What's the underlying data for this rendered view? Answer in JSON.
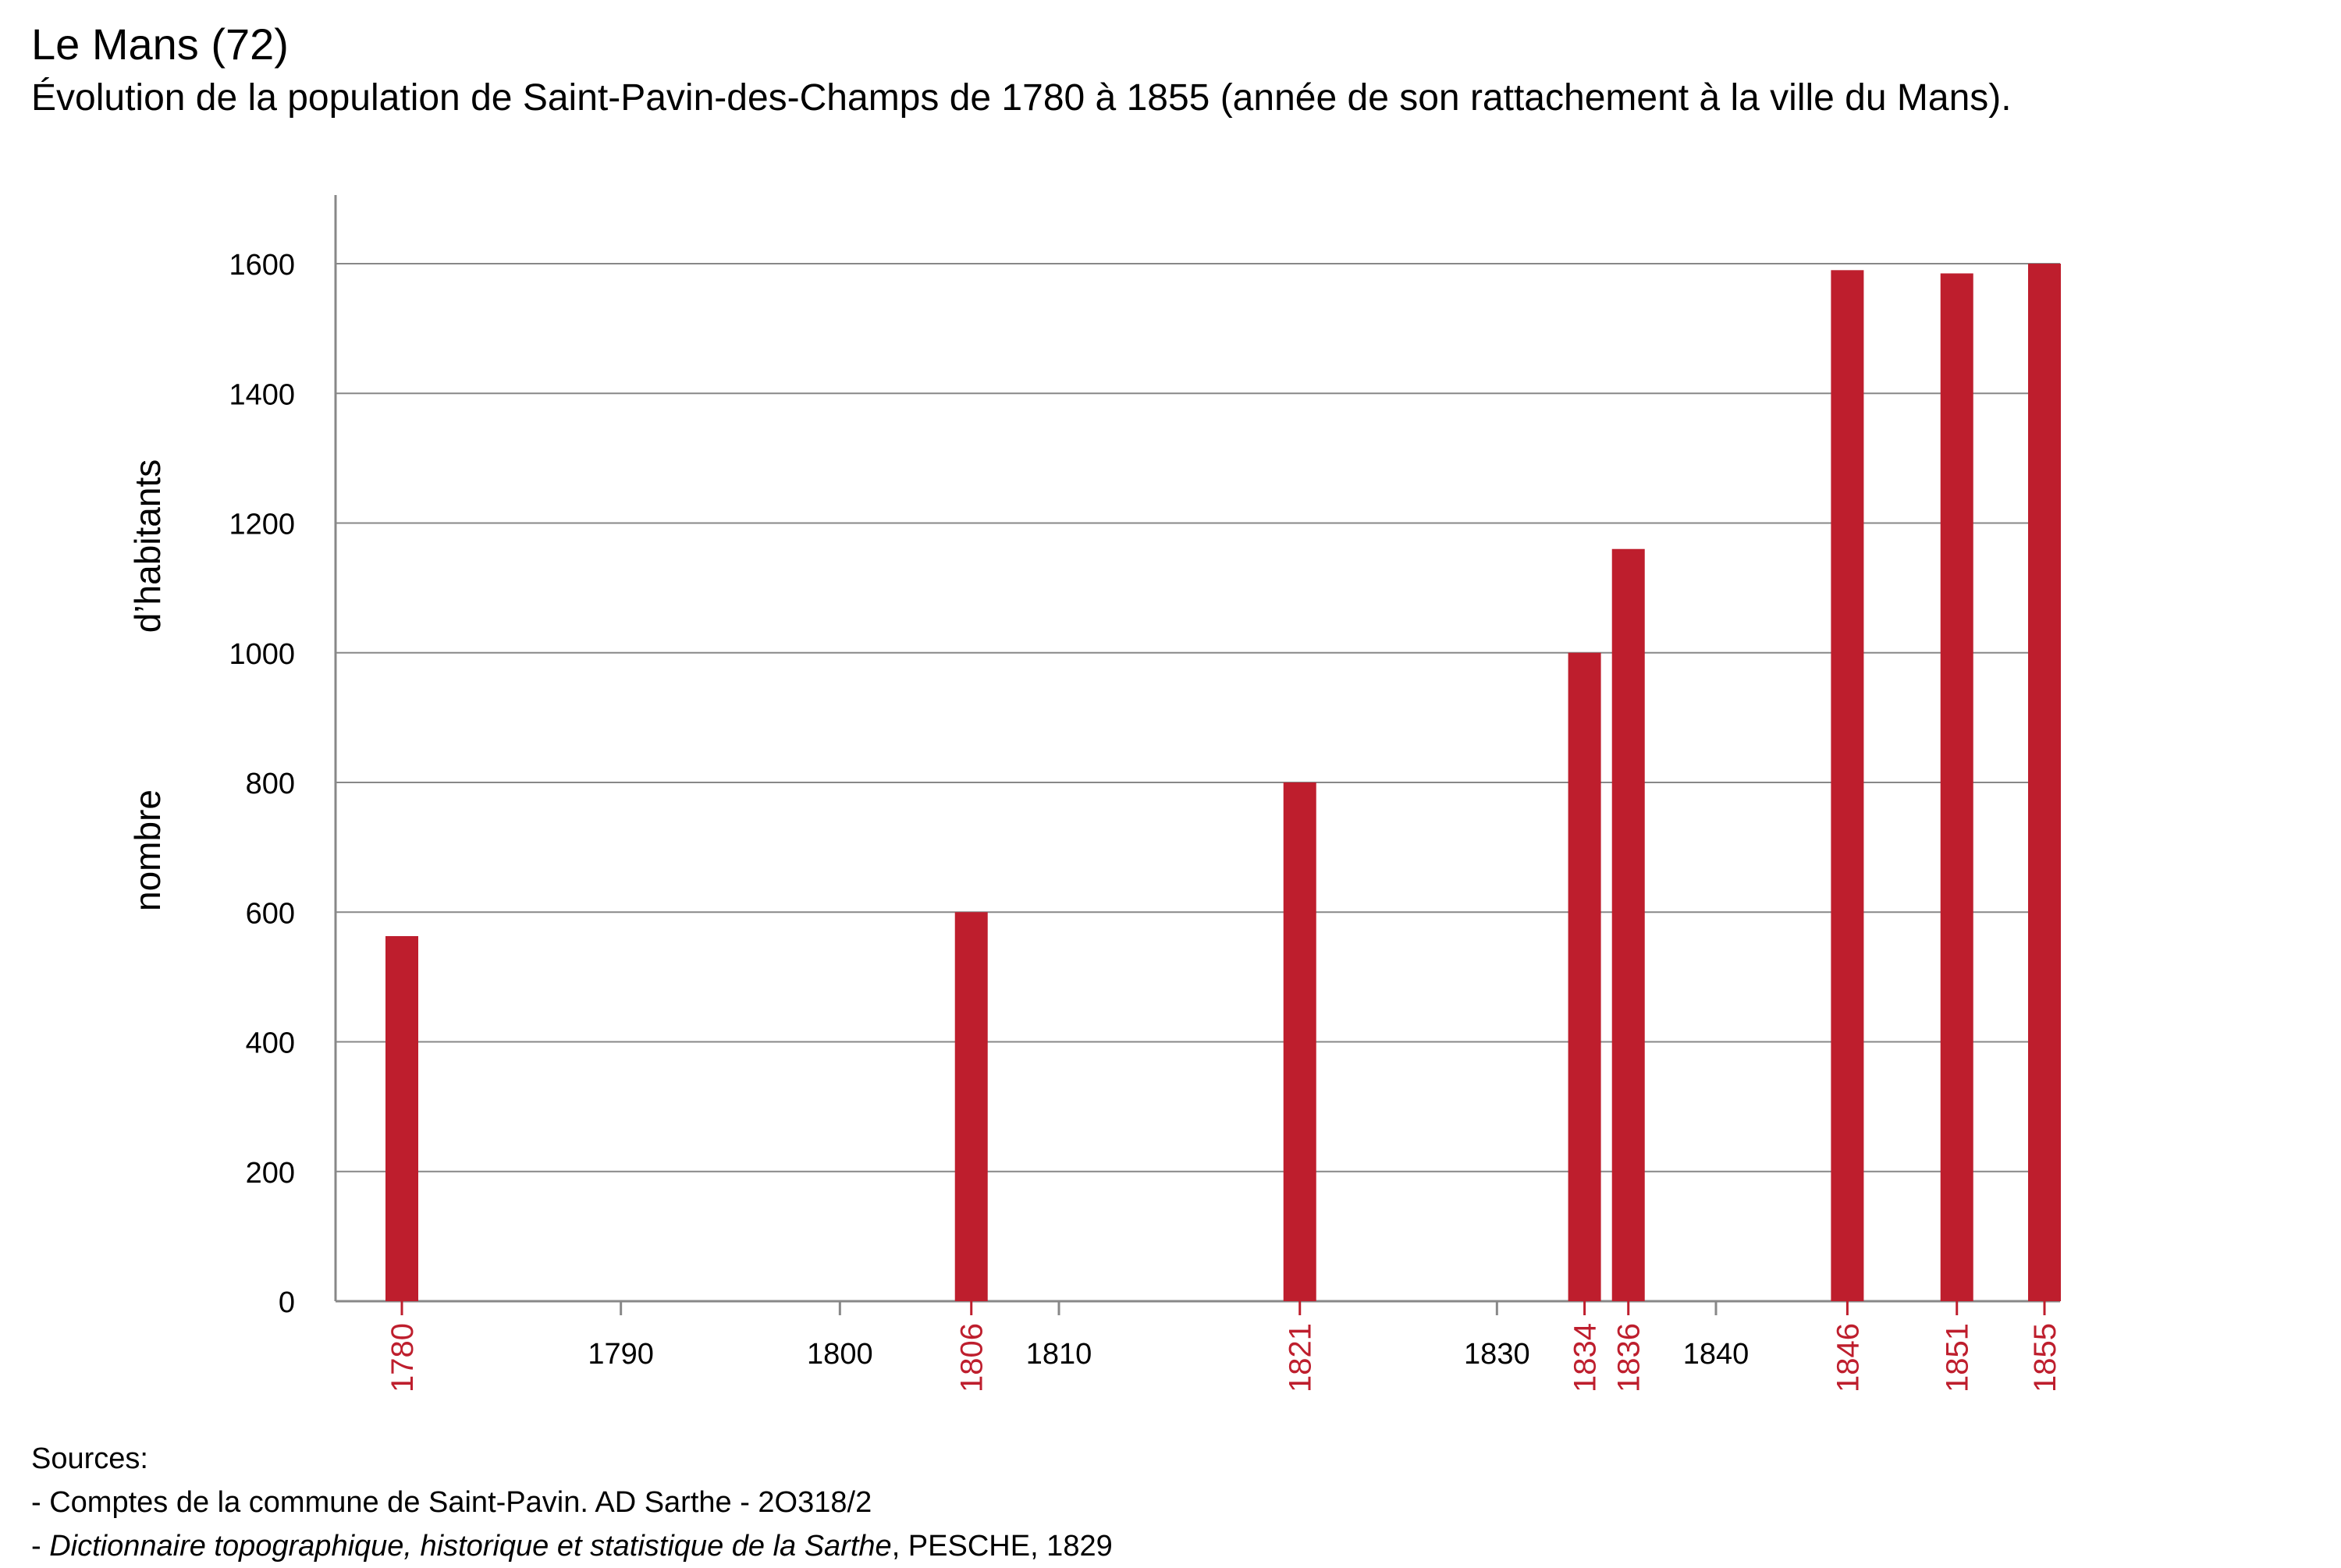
{
  "header": {
    "title": "Le Mans (72)",
    "subtitle": "Évolution de la population de Saint-Pavin-des-Champs de 1780 à 1855 (année de son rattachement à la ville du Mans)."
  },
  "chart_data": {
    "type": "bar",
    "title": "Évolution de la population de Saint-Pavin-des-Champs de 1780 à 1855 (année de son rattachement à la ville du Mans).",
    "xlabel": "",
    "ylabel_lines": [
      "d’habitants",
      "nombre"
    ],
    "ylim": [
      0,
      1700
    ],
    "xlim": [
      1779,
      1855
    ],
    "yticks": [
      0,
      200,
      400,
      600,
      800,
      1000,
      1200,
      1400,
      1600
    ],
    "xticks": [
      1790,
      1800,
      1810,
      1830,
      1840
    ],
    "grid": true,
    "bar_color": "#BE1E2D",
    "highlight_label_color": "#BE1E2D",
    "axis_color": "#888888",
    "categories": [
      "1780",
      "1806",
      "1821",
      "1834",
      "1836",
      "1846",
      "1851",
      "1855"
    ],
    "x": [
      1780,
      1806,
      1821,
      1834,
      1836,
      1846,
      1851,
      1855
    ],
    "values": [
      563,
      600,
      800,
      1000,
      1160,
      1590,
      1585,
      1600
    ]
  },
  "sources": {
    "heading": "Sources:",
    "line1": "- Comptes de la commune de Saint-Pavin. AD Sarthe - 2O318/2",
    "line2_prefix": "- ",
    "line2_italic": "Dictionnaire topographique, historique et statistique de la Sarthe",
    "line2_suffix": ", PESCHE, 1829"
  }
}
